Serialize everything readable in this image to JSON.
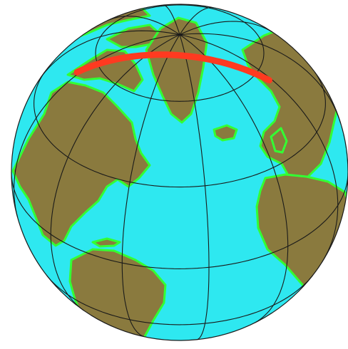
{
  "map": {
    "projection": "orthographic",
    "center_lon": -40,
    "center_lat": 35,
    "graticule_lon_step_deg": 30,
    "graticule_lat_step_deg": 30,
    "great_circle": {
      "start": {
        "lon": -122,
        "lat": 52
      },
      "end": {
        "lon": 28,
        "lat": 55
      }
    },
    "colors": {
      "ocean": "#2ee8f0",
      "land": "#8a7a3e",
      "coast_shallow": "#33ff33",
      "graticule": "#1a1a1a",
      "route": "#ff3a20",
      "background": "#ffffff"
    }
  }
}
